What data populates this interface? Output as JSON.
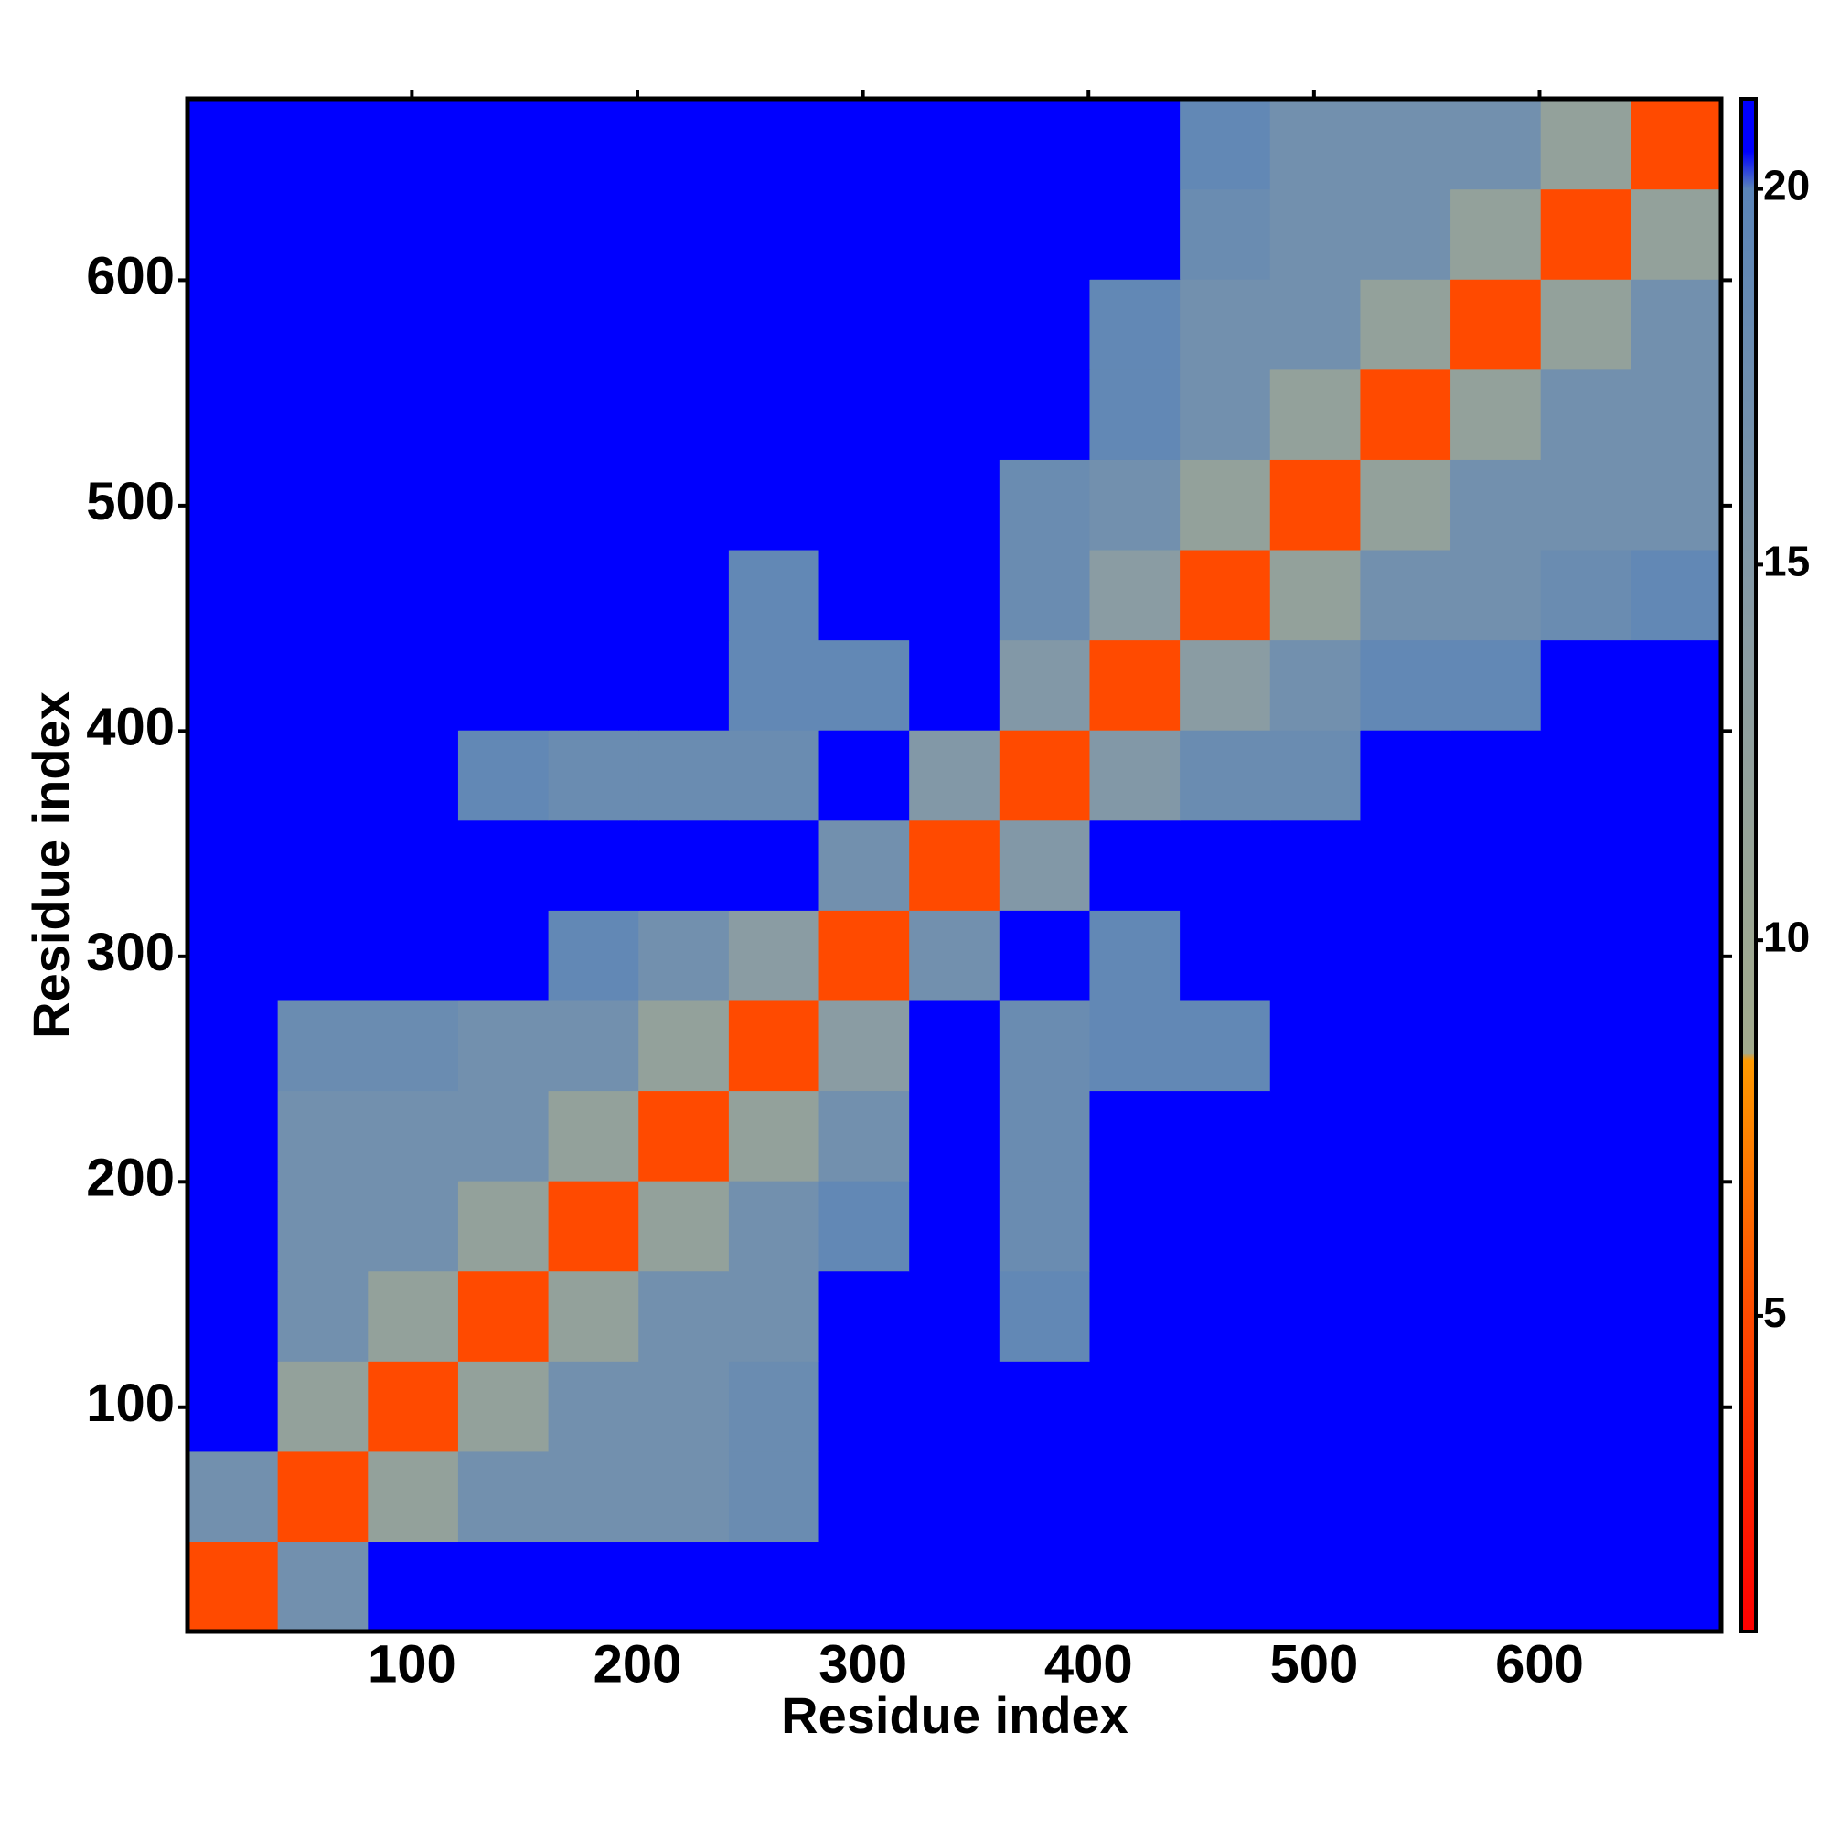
{
  "chart_data": {
    "type": "heatmap",
    "xlabel": "Residue index",
    "ylabel": "Residue index",
    "bins": [
      0.5,
      40.5,
      80.5,
      120.5,
      160.5,
      200.5,
      240.5,
      280.5,
      320.5,
      360.5,
      400.5,
      440.5,
      480.5,
      520.5,
      560.5,
      600.5,
      640.5,
      680.5
    ],
    "z": [
      [
        5,
        17,
        21,
        21,
        21,
        21,
        21,
        21,
        21,
        21,
        21,
        21,
        21,
        21,
        21,
        21,
        21
      ],
      [
        17,
        5,
        12,
        17,
        17,
        17,
        18,
        21,
        21,
        21,
        21,
        21,
        21,
        21,
        21,
        21,
        21
      ],
      [
        21,
        12,
        5,
        12,
        17,
        17,
        18,
        21,
        21,
        21,
        21,
        21,
        21,
        21,
        21,
        21,
        21
      ],
      [
        21,
        17,
        12,
        5,
        12,
        17,
        17,
        21,
        21,
        19,
        21,
        21,
        21,
        21,
        21,
        21,
        21
      ],
      [
        21,
        17,
        17,
        12,
        5,
        12,
        17,
        19,
        21,
        18,
        21,
        21,
        21,
        21,
        21,
        21,
        21
      ],
      [
        21,
        17,
        17,
        17,
        12,
        5,
        12,
        17,
        21,
        18,
        21,
        21,
        21,
        21,
        21,
        21,
        21
      ],
      [
        21,
        18,
        18,
        17,
        17,
        12,
        5,
        14,
        21,
        18,
        19,
        19,
        21,
        21,
        21,
        21,
        21
      ],
      [
        21,
        21,
        21,
        21,
        19,
        17,
        14,
        5,
        17,
        21,
        19,
        21,
        21,
        21,
        21,
        21,
        21
      ],
      [
        21,
        21,
        21,
        21,
        21,
        21,
        21,
        17,
        5,
        15,
        21,
        21,
        21,
        21,
        21,
        21,
        21
      ],
      [
        21,
        21,
        21,
        19,
        18,
        18,
        18,
        21,
        15,
        5,
        15,
        18,
        18,
        21,
        21,
        21,
        21
      ],
      [
        21,
        21,
        21,
        21,
        21,
        21,
        19,
        19,
        21,
        15,
        5,
        14,
        17,
        19,
        19,
        21,
        21
      ],
      [
        21,
        21,
        21,
        21,
        21,
        21,
        19,
        21,
        21,
        18,
        14,
        5,
        12,
        17,
        17,
        18,
        19
      ],
      [
        21,
        21,
        21,
        21,
        21,
        21,
        21,
        21,
        21,
        18,
        17,
        12,
        5,
        12,
        17,
        17,
        17
      ],
      [
        21,
        21,
        21,
        21,
        21,
        21,
        21,
        21,
        21,
        21,
        19,
        17,
        12,
        5,
        12,
        17,
        17
      ],
      [
        21,
        21,
        21,
        21,
        21,
        21,
        21,
        21,
        21,
        21,
        19,
        17,
        17,
        12,
        5,
        12,
        17
      ],
      [
        21,
        21,
        21,
        21,
        21,
        21,
        21,
        21,
        21,
        21,
        21,
        18,
        17,
        17,
        12,
        5,
        12
      ],
      [
        21,
        21,
        21,
        21,
        21,
        21,
        21,
        21,
        21,
        21,
        21,
        19,
        17,
        17,
        17,
        12,
        5
      ]
    ],
    "xlim": [
      0.5,
      680.5
    ],
    "ylim": [
      0.5,
      680.5
    ],
    "xticks": [
      100,
      200,
      300,
      400,
      500,
      600
    ],
    "yticks": [
      100,
      200,
      300,
      400,
      500,
      600
    ],
    "zlim": [
      0.8,
      21.2
    ],
    "zticks": [
      5,
      10,
      15,
      20
    ],
    "colorscale": [
      [
        0.8,
        "#ff0000"
      ],
      [
        5,
        "#ff4a00"
      ],
      [
        8.4,
        "#ff9a00"
      ],
      [
        8.5,
        "#a3ab8c"
      ],
      [
        14,
        "#8a9ca3"
      ],
      [
        20,
        "#5a84b8"
      ],
      [
        20.5,
        "#0000ff"
      ],
      [
        21.2,
        "#0000ff"
      ]
    ]
  }
}
